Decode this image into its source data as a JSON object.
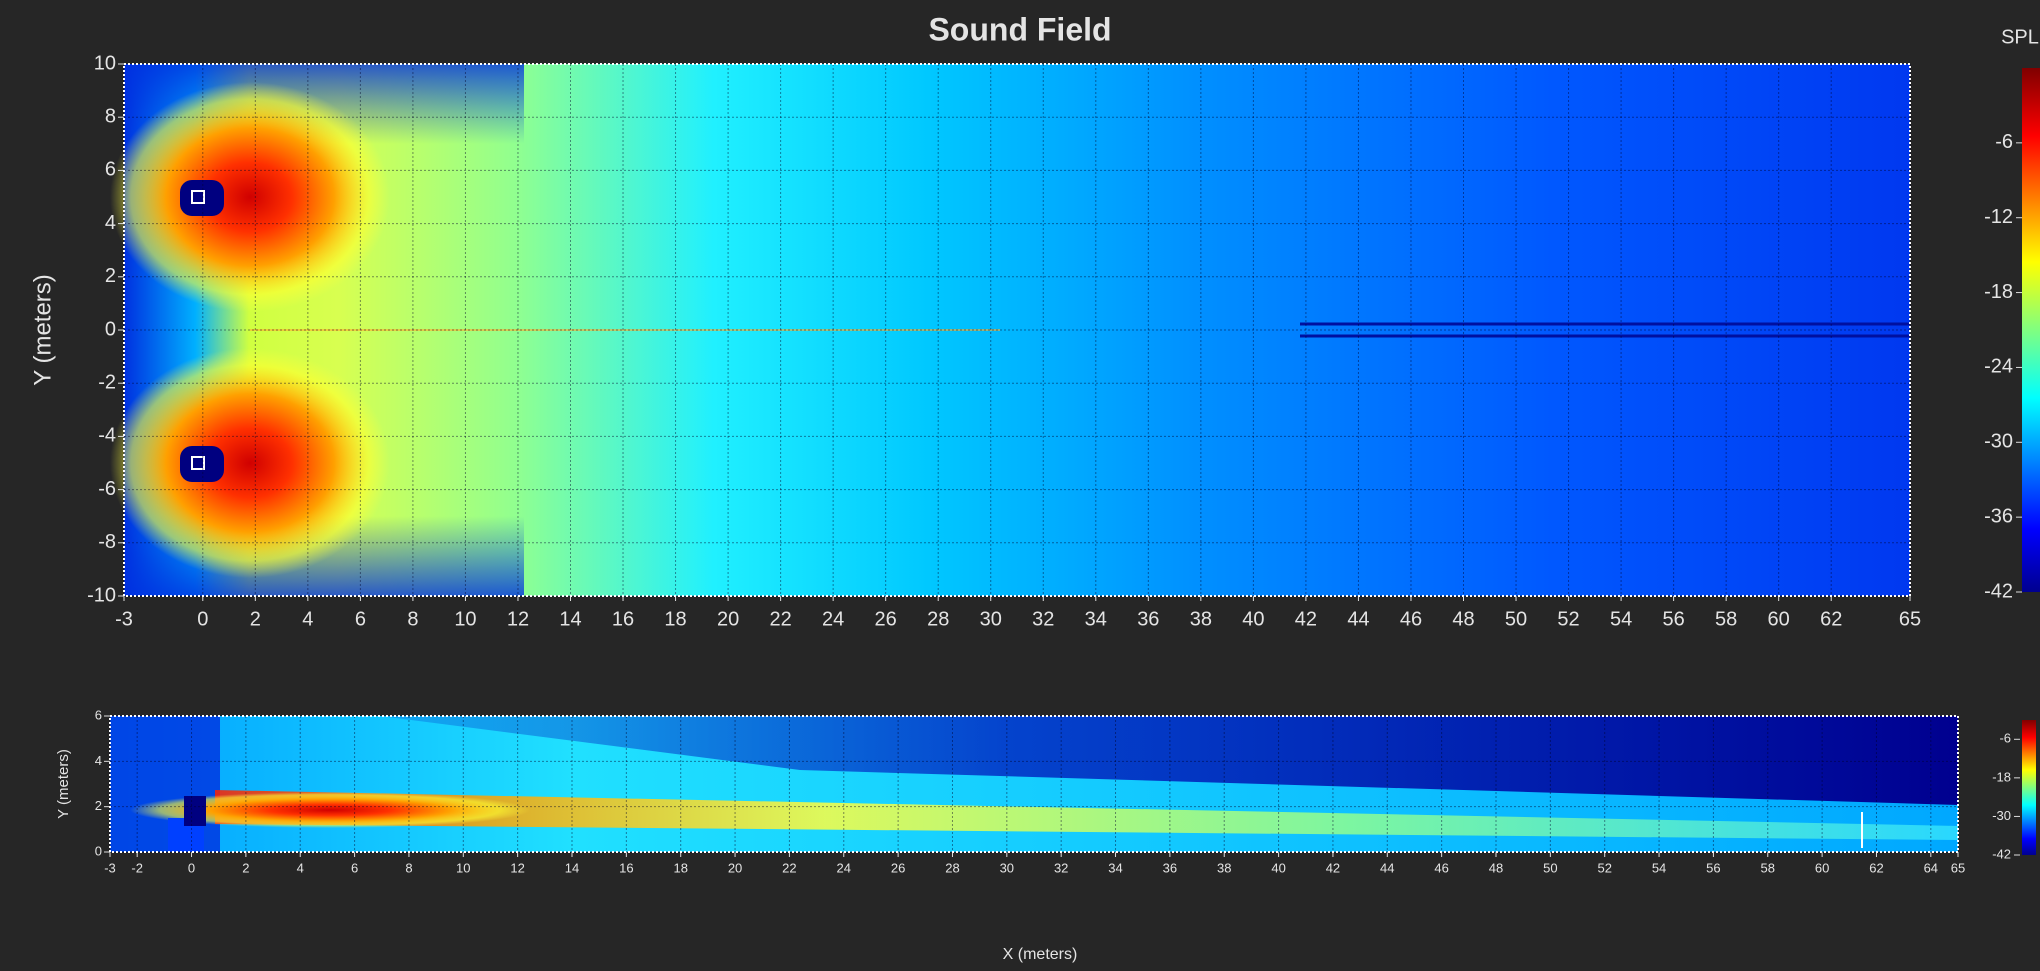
{
  "chart_data": [
    {
      "type": "heatmap",
      "title": "Sound Field",
      "y_label": "Y (meters)",
      "xlim": [
        -3,
        65
      ],
      "xticks": [
        -3,
        0,
        2,
        4,
        6,
        8,
        10,
        12,
        14,
        16,
        18,
        20,
        22,
        24,
        26,
        28,
        30,
        32,
        34,
        36,
        38,
        40,
        42,
        44,
        46,
        48,
        50,
        52,
        54,
        56,
        58,
        60,
        62,
        65
      ],
      "ylim": [
        -10,
        10
      ],
      "yticks": [
        -10,
        -8,
        -6,
        -4,
        -2,
        0,
        2,
        4,
        6,
        8,
        10
      ],
      "grid": true,
      "colorbar": {
        "label": "SPL",
        "lim": [
          -42,
          0
        ],
        "ticks": [
          -6,
          -12,
          -18,
          -24,
          -30,
          -36,
          -42
        ]
      }
    },
    {
      "type": "heatmap",
      "x_label": "X (meters)",
      "y_label": "Y (meters)",
      "xlim": [
        -3,
        65
      ],
      "xticks": [
        -3,
        -2,
        0,
        2,
        4,
        6,
        8,
        10,
        12,
        14,
        16,
        18,
        20,
        22,
        24,
        26,
        28,
        30,
        32,
        34,
        36,
        38,
        40,
        42,
        44,
        46,
        48,
        50,
        52,
        54,
        56,
        58,
        60,
        62,
        64,
        65
      ],
      "ylim": [
        0,
        6
      ],
      "yticks": [
        0,
        2,
        4,
        6
      ],
      "grid": true,
      "colorbar": {
        "lim": [
          -42,
          0
        ],
        "ticks": [
          -6,
          -18,
          -30,
          -42
        ]
      }
    }
  ]
}
